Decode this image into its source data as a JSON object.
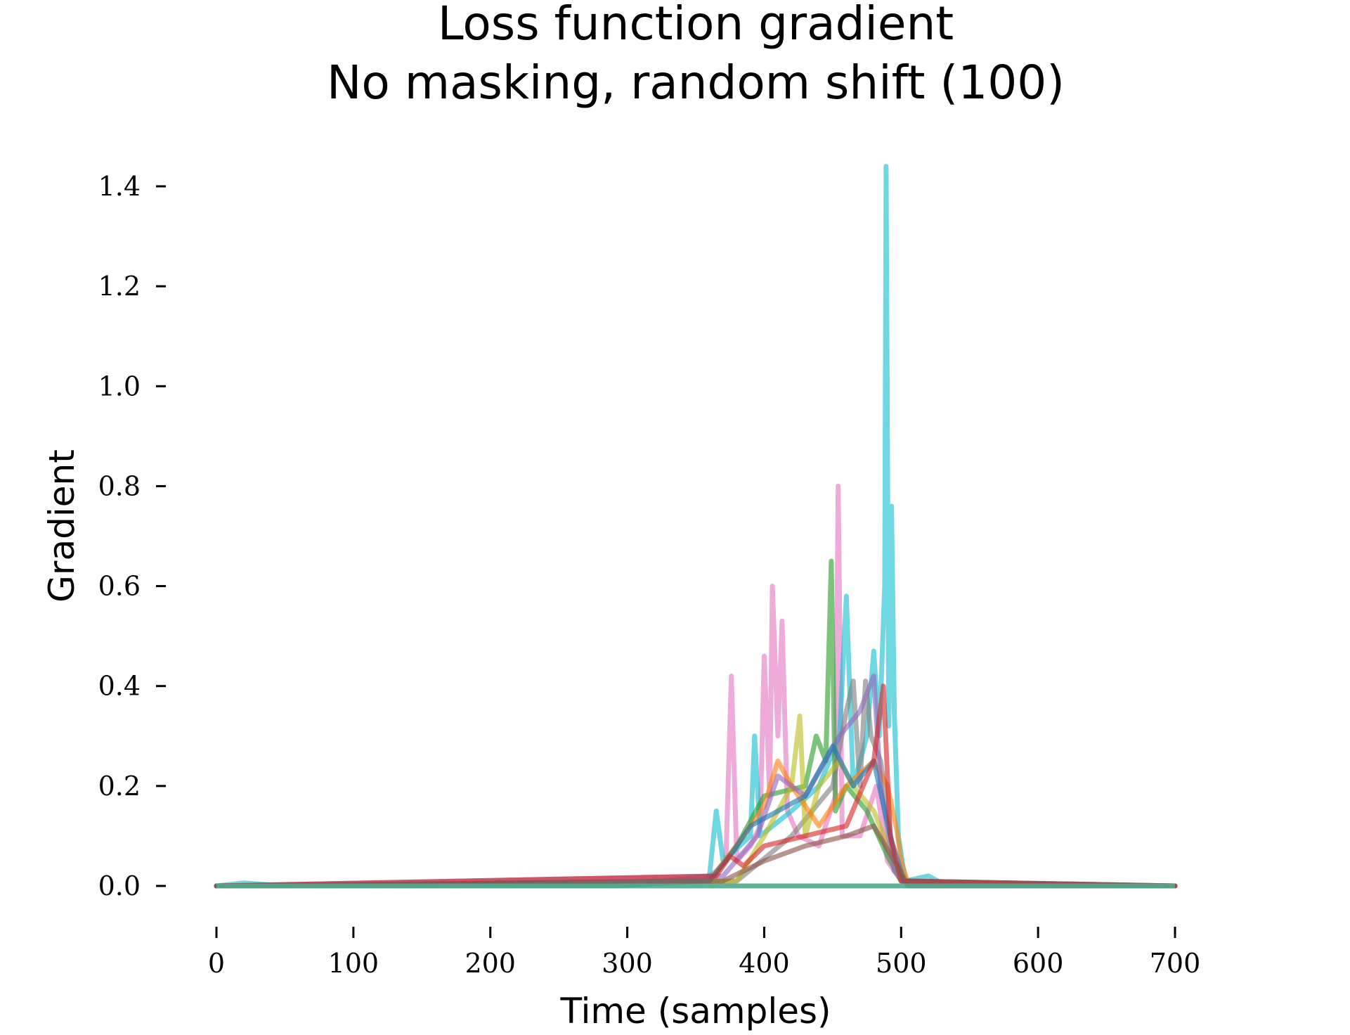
{
  "chart_data": {
    "type": "line",
    "title": "Loss function gradient",
    "subtitle": "No masking, random shift (100)",
    "xlabel": "Time (samples)",
    "ylabel": "Gradient",
    "xlim": [
      0,
      700
    ],
    "ylim": [
      -0.07,
      1.5
    ],
    "xticks": [
      0,
      100,
      200,
      300,
      400,
      500,
      600,
      700
    ],
    "xtick_labels": [
      "0",
      "100",
      "200",
      "300",
      "400",
      "500",
      "600",
      "700"
    ],
    "yticks": [
      0.0,
      0.2,
      0.4,
      0.6,
      0.8,
      1.0,
      1.2,
      1.4
    ],
    "ytick_labels": [
      "0.0",
      "0.2",
      "0.4",
      "0.6",
      "0.8",
      "1.0",
      "1.2",
      "1.4"
    ],
    "grid": false,
    "legend": "none",
    "series_colors": [
      "#1f77b4",
      "#ff7f0e",
      "#2ca02c",
      "#d62728",
      "#9467bd",
      "#8c564b",
      "#e377c2",
      "#7f7f7f",
      "#bcbd22",
      "#17becf"
    ],
    "series": [
      {
        "color": "#e377c2",
        "points": [
          [
            0,
            0
          ],
          [
            300,
            0.002
          ],
          [
            355,
            0.01
          ],
          [
            365,
            0.03
          ],
          [
            372,
            0.05
          ],
          [
            376,
            0.42
          ],
          [
            380,
            0.05
          ],
          [
            390,
            0.08
          ],
          [
            397,
            0.12
          ],
          [
            400,
            0.46
          ],
          [
            404,
            0.18
          ],
          [
            406,
            0.6
          ],
          [
            410,
            0.3
          ],
          [
            413,
            0.53
          ],
          [
            417,
            0.15
          ],
          [
            425,
            0.1
          ],
          [
            440,
            0.08
          ],
          [
            452,
            0.18
          ],
          [
            454,
            0.8
          ],
          [
            457,
            0.1
          ],
          [
            470,
            0.1
          ],
          [
            482,
            0.2
          ],
          [
            490,
            0.05
          ],
          [
            500,
            0.01
          ],
          [
            600,
            0.001
          ],
          [
            700,
            0
          ]
        ]
      },
      {
        "color": "#17becf",
        "points": [
          [
            0,
            0
          ],
          [
            20,
            0.006
          ],
          [
            40,
            0.002
          ],
          [
            300,
            0.002
          ],
          [
            360,
            0.02
          ],
          [
            365,
            0.15
          ],
          [
            370,
            0.05
          ],
          [
            390,
            0.1
          ],
          [
            393,
            0.3
          ],
          [
            397,
            0.1
          ],
          [
            420,
            0.15
          ],
          [
            440,
            0.2
          ],
          [
            455,
            0.3
          ],
          [
            460,
            0.58
          ],
          [
            465,
            0.2
          ],
          [
            475,
            0.3
          ],
          [
            480,
            0.47
          ],
          [
            484,
            0.3
          ],
          [
            488,
            0.6
          ],
          [
            489,
            1.44
          ],
          [
            491,
            0.32
          ],
          [
            493,
            0.76
          ],
          [
            495,
            0.35
          ],
          [
            498,
            0.1
          ],
          [
            503,
            0.01
          ],
          [
            520,
            0.02
          ],
          [
            530,
            0.005
          ],
          [
            600,
            0.003
          ],
          [
            700,
            0
          ]
        ]
      },
      {
        "color": "#2ca02c",
        "points": [
          [
            0,
            0
          ],
          [
            300,
            0.001
          ],
          [
            360,
            0.01
          ],
          [
            380,
            0.08
          ],
          [
            400,
            0.18
          ],
          [
            430,
            0.2
          ],
          [
            438,
            0.3
          ],
          [
            445,
            0.25
          ],
          [
            449,
            0.65
          ],
          [
            452,
            0.15
          ],
          [
            460,
            0.2
          ],
          [
            475,
            0.15
          ],
          [
            490,
            0.06
          ],
          [
            500,
            0.01
          ],
          [
            700,
            0
          ]
        ]
      },
      {
        "color": "#7f7f7f",
        "points": [
          [
            0,
            0
          ],
          [
            380,
            0.01
          ],
          [
            420,
            0.1
          ],
          [
            450,
            0.2
          ],
          [
            460,
            0.35
          ],
          [
            465,
            0.41
          ],
          [
            470,
            0.2
          ],
          [
            474,
            0.41
          ],
          [
            478,
            0.3
          ],
          [
            485,
            0.25
          ],
          [
            495,
            0.05
          ],
          [
            505,
            0.005
          ],
          [
            700,
            0
          ]
        ]
      },
      {
        "color": "#bcbd22",
        "points": [
          [
            0,
            0
          ],
          [
            380,
            0.01
          ],
          [
            400,
            0.1
          ],
          [
            420,
            0.2
          ],
          [
            426,
            0.34
          ],
          [
            430,
            0.1
          ],
          [
            440,
            0.2
          ],
          [
            455,
            0.25
          ],
          [
            465,
            0.2
          ],
          [
            480,
            0.15
          ],
          [
            495,
            0.05
          ],
          [
            505,
            0.005
          ],
          [
            700,
            0
          ]
        ]
      },
      {
        "color": "#ff7f0e",
        "points": [
          [
            0,
            0
          ],
          [
            360,
            0.01
          ],
          [
            385,
            0.1
          ],
          [
            400,
            0.16
          ],
          [
            410,
            0.25
          ],
          [
            420,
            0.2
          ],
          [
            440,
            0.12
          ],
          [
            460,
            0.2
          ],
          [
            480,
            0.25
          ],
          [
            490,
            0.2
          ],
          [
            497,
            0.11
          ],
          [
            500,
            0.05
          ],
          [
            505,
            0.005
          ],
          [
            700,
            0
          ]
        ]
      },
      {
        "color": "#9467bd",
        "points": [
          [
            0,
            0
          ],
          [
            370,
            0.02
          ],
          [
            395,
            0.1
          ],
          [
            410,
            0.22
          ],
          [
            430,
            0.18
          ],
          [
            455,
            0.3
          ],
          [
            470,
            0.35
          ],
          [
            480,
            0.42
          ],
          [
            485,
            0.2
          ],
          [
            495,
            0.03
          ],
          [
            505,
            0
          ],
          [
            700,
            0
          ]
        ]
      },
      {
        "color": "#1f77b4",
        "points": [
          [
            0,
            0
          ],
          [
            360,
            0.01
          ],
          [
            375,
            0.06
          ],
          [
            390,
            0.12
          ],
          [
            410,
            0.15
          ],
          [
            430,
            0.18
          ],
          [
            450,
            0.28
          ],
          [
            465,
            0.2
          ],
          [
            480,
            0.25
          ],
          [
            492,
            0.1
          ],
          [
            502,
            0.01
          ],
          [
            700,
            0
          ]
        ]
      },
      {
        "color": "#d62728",
        "points": [
          [
            0,
            0
          ],
          [
            365,
            0.02
          ],
          [
            375,
            0.06
          ],
          [
            385,
            0.04
          ],
          [
            400,
            0.08
          ],
          [
            430,
            0.1
          ],
          [
            460,
            0.12
          ],
          [
            480,
            0.25
          ],
          [
            487,
            0.4
          ],
          [
            492,
            0.1
          ],
          [
            500,
            0.01
          ],
          [
            700,
            0
          ]
        ]
      },
      {
        "color": "#8c564b",
        "points": [
          [
            0,
            0
          ],
          [
            370,
            0.01
          ],
          [
            400,
            0.05
          ],
          [
            430,
            0.08
          ],
          [
            460,
            0.1
          ],
          [
            480,
            0.12
          ],
          [
            495,
            0.05
          ],
          [
            505,
            0
          ],
          [
            700,
            0
          ]
        ]
      }
    ]
  }
}
